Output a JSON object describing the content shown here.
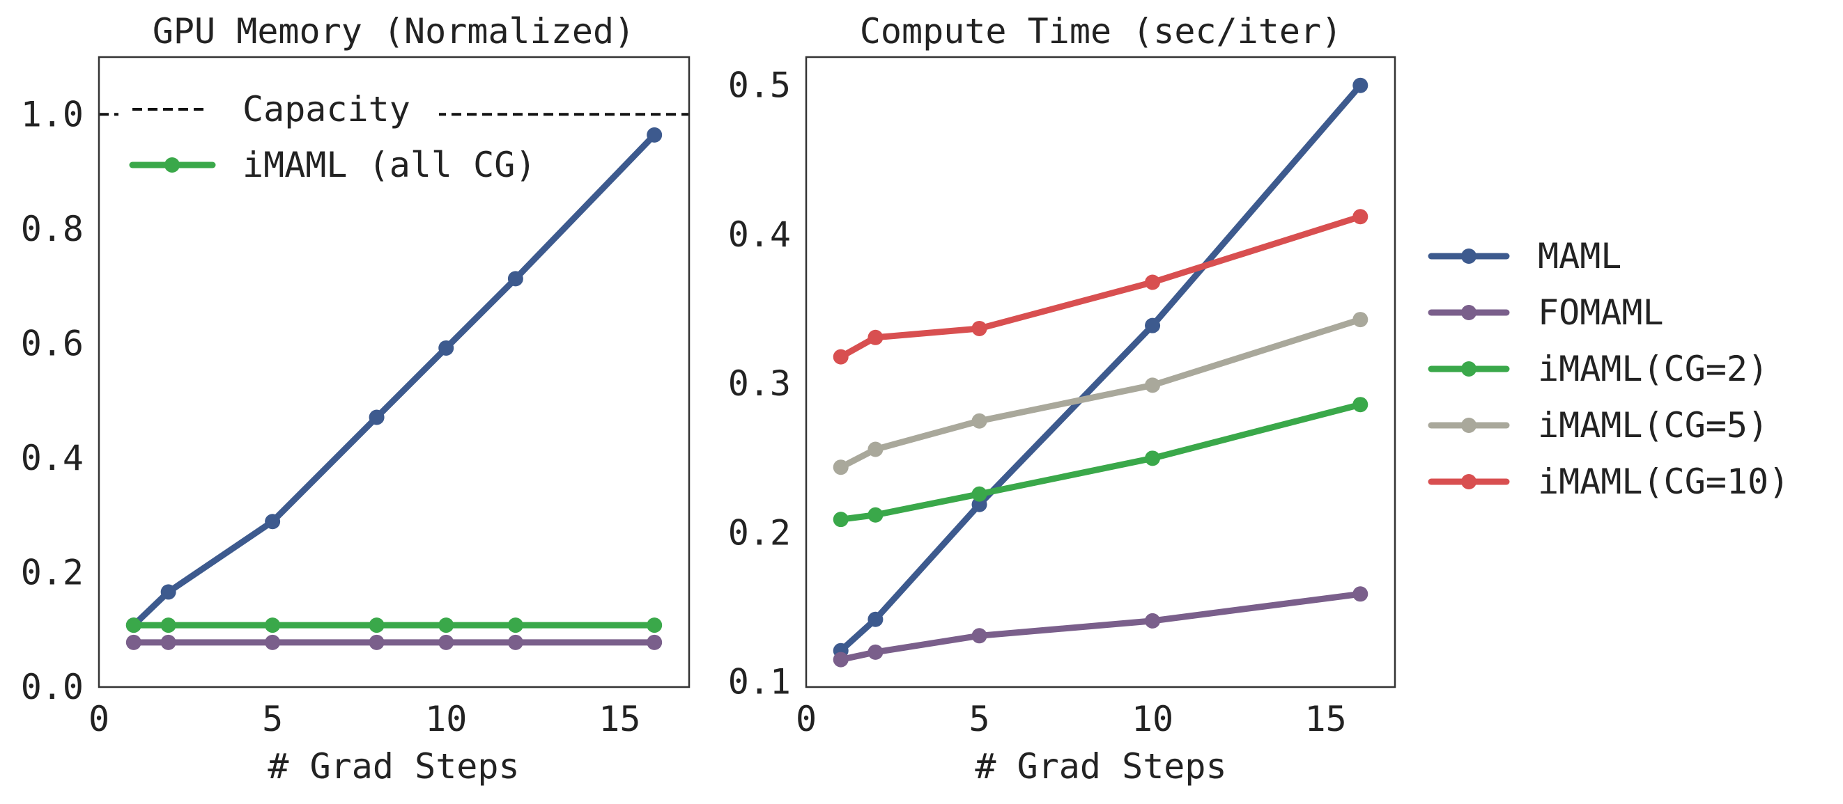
{
  "chart_data": [
    {
      "type": "line",
      "title": "GPU Memory (Normalized)",
      "xlabel": "# Grad Steps",
      "ylabel": "",
      "xlim": [
        0,
        17
      ],
      "ylim": [
        0,
        1.1
      ],
      "xticks": [
        "0",
        "5",
        "10",
        "15"
      ],
      "yticks": [
        "0.0",
        "0.2",
        "0.4",
        "0.6",
        "0.8",
        "1.0"
      ],
      "grid": false,
      "legend_placement": "top-left",
      "x": [
        1,
        2,
        5,
        8,
        10,
        12,
        16
      ],
      "hlines": [
        {
          "name": "Capacity",
          "y": 1.0,
          "color": "#111111",
          "style": "dashed"
        }
      ],
      "series": [
        {
          "key": "maml",
          "values": [
            0.108,
            0.166,
            0.289,
            0.471,
            0.592,
            0.713,
            0.964
          ],
          "color": "#3d5a8e"
        },
        {
          "key": "fomaml",
          "values": [
            0.078,
            0.078,
            0.078,
            0.078,
            0.078,
            0.078,
            0.078
          ],
          "color": "#7a5f8b"
        },
        {
          "key": "imaml",
          "name": "iMAML (all CG)",
          "values": [
            0.108,
            0.108,
            0.108,
            0.108,
            0.108,
            0.108,
            0.108
          ],
          "color": "#3aa84a"
        }
      ]
    },
    {
      "type": "line",
      "title": "Compute Time (sec/iter)",
      "xlabel": "# Grad Steps",
      "ylabel": "",
      "xlim": [
        0,
        17
      ],
      "ylim": [
        0.0966,
        0.519
      ],
      "xticks": [
        "0",
        "5",
        "10",
        "15"
      ],
      "yticks": [
        "0.1",
        "0.2",
        "0.3",
        "0.4",
        "0.5"
      ],
      "grid": false,
      "legend_placement": "outside-right",
      "x": [
        1,
        2,
        5,
        10,
        16
      ],
      "series": [
        {
          "name": "MAML",
          "values": [
            0.121,
            0.142,
            0.219,
            0.339,
            0.5
          ],
          "color": "#3d5a8e"
        },
        {
          "name": "FOMAML",
          "values": [
            0.115,
            0.12,
            0.131,
            0.141,
            0.159
          ],
          "color": "#7a5f8b"
        },
        {
          "name": "iMAML(CG=2)",
          "values": [
            0.209,
            0.212,
            0.226,
            0.25,
            0.286
          ],
          "color": "#3aa84a"
        },
        {
          "name": "iMAML(CG=5)",
          "values": [
            0.244,
            0.256,
            0.275,
            0.299,
            0.343
          ],
          "color": "#a9a89b"
        },
        {
          "name": "iMAML(CG=10)",
          "values": [
            0.318,
            0.331,
            0.337,
            0.368,
            0.412
          ],
          "color": "#d84f50"
        }
      ]
    }
  ]
}
